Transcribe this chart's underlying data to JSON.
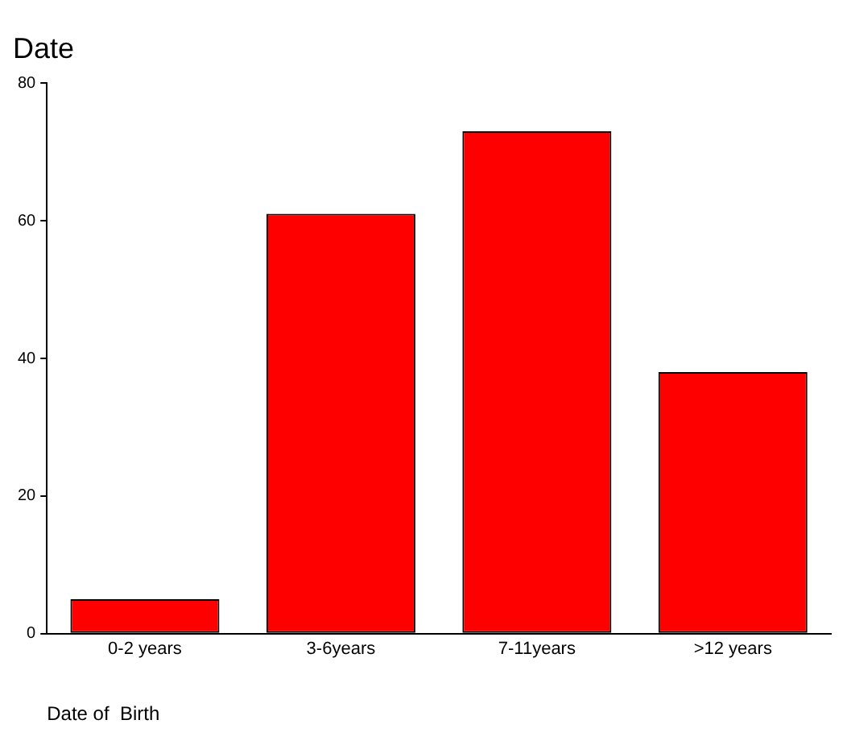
{
  "chart_data": {
    "type": "bar",
    "title": "Date",
    "xlabel": "Date of  Birth",
    "categories": [
      "0-2 years",
      "3-6years",
      "7-11years",
      ">12 years"
    ],
    "values": [
      5,
      61,
      73,
      38
    ],
    "color": "#ff0000",
    "ylim": [
      0,
      80
    ],
    "yticks": [
      0,
      20,
      40,
      60,
      80
    ],
    "grid": false,
    "legend": false
  }
}
